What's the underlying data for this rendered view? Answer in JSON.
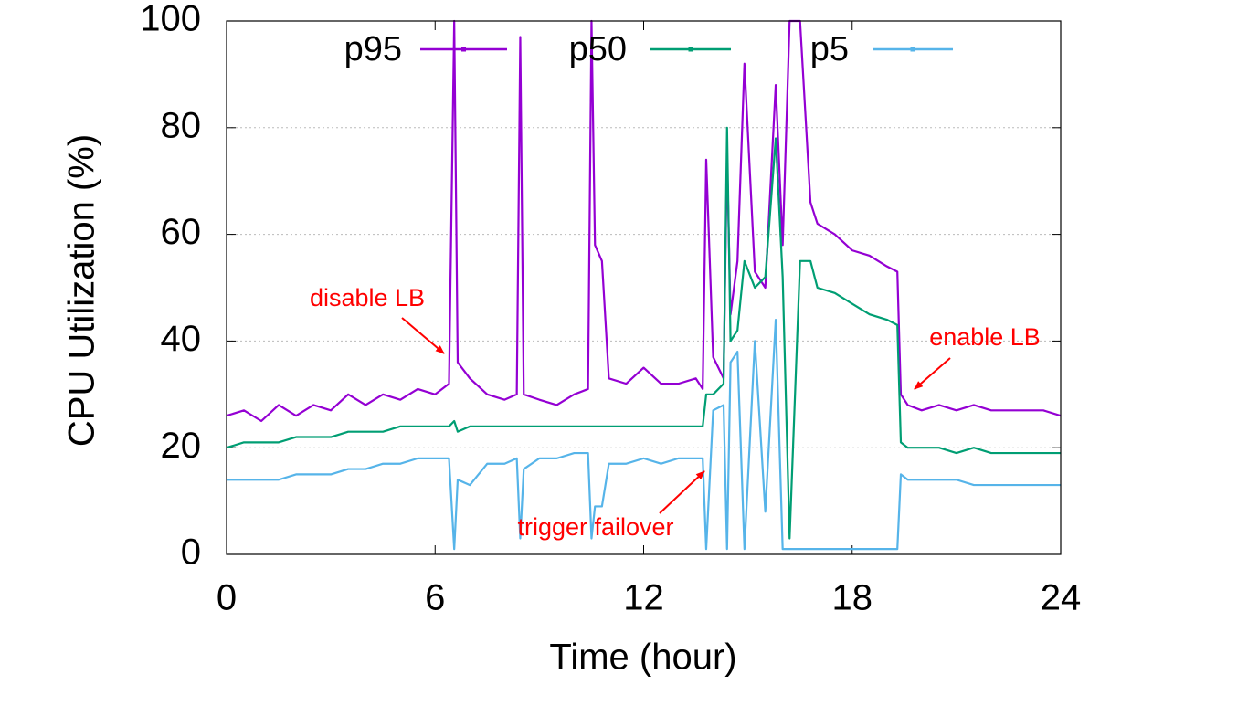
{
  "chart_data": {
    "type": "line",
    "x_label": "Time (hour)",
    "y_label": "CPU Utilization (%)",
    "xlim": [
      0,
      24
    ],
    "xticks": [
      0,
      6,
      12,
      18,
      24
    ],
    "ylim": [
      0,
      100
    ],
    "yticks": [
      0,
      20,
      40,
      60,
      80,
      100
    ],
    "grid": "y",
    "legend": "top",
    "annotations": [
      "disable LB",
      "trigger failover",
      "enable LB"
    ],
    "x": [
      0,
      0.5,
      1,
      1.5,
      2,
      2.5,
      3,
      3.5,
      4,
      4.5,
      5,
      5.5,
      6,
      6.4,
      6.55,
      6.65,
      7,
      7.5,
      8,
      8.35,
      8.45,
      8.55,
      9,
      9.5,
      10,
      10.4,
      10.5,
      10.6,
      10.8,
      11,
      11.5,
      12,
      12.5,
      13,
      13.5,
      13.7,
      13.8,
      14,
      14.3,
      14.4,
      14.5,
      14.7,
      14.9,
      15.2,
      15.5,
      15.8,
      16,
      16.2,
      16.5,
      16.8,
      17,
      17.5,
      18,
      18.5,
      19,
      19.3,
      19.4,
      19.6,
      20,
      20.5,
      21,
      21.5,
      22,
      22.5,
      23,
      23.5,
      24
    ],
    "series": [
      {
        "name": "p95",
        "color": "#9400d3",
        "values": [
          26,
          27,
          25,
          28,
          26,
          28,
          27,
          30,
          28,
          30,
          29,
          31,
          30,
          32,
          100,
          36,
          33,
          30,
          29,
          30,
          97,
          30,
          29,
          28,
          30,
          31,
          100,
          58,
          55,
          33,
          32,
          35,
          32,
          32,
          33,
          31,
          74,
          37,
          33,
          75,
          45,
          55,
          92,
          53,
          50,
          88,
          58,
          100,
          100,
          66,
          62,
          60,
          57,
          56,
          54,
          53,
          30,
          28,
          27,
          28,
          27,
          28,
          27,
          27,
          27,
          27,
          26
        ]
      },
      {
        "name": "p50",
        "color": "#009e73",
        "values": [
          20,
          21,
          21,
          21,
          22,
          22,
          22,
          23,
          23,
          23,
          24,
          24,
          24,
          24,
          25,
          23,
          24,
          24,
          24,
          24,
          24,
          24,
          24,
          24,
          24,
          24,
          24,
          24,
          24,
          24,
          24,
          24,
          24,
          24,
          24,
          24,
          30,
          30,
          32,
          80,
          40,
          42,
          55,
          50,
          52,
          78,
          52,
          3,
          55,
          55,
          50,
          49,
          47,
          45,
          44,
          43,
          21,
          20,
          20,
          20,
          19,
          20,
          19,
          19,
          19,
          19,
          19
        ]
      },
      {
        "name": "p5",
        "color": "#56b4e9",
        "values": [
          14,
          14,
          14,
          14,
          15,
          15,
          15,
          16,
          16,
          17,
          17,
          18,
          18,
          18,
          1,
          14,
          13,
          17,
          17,
          18,
          3,
          16,
          18,
          18,
          19,
          19,
          3,
          9,
          9,
          17,
          17,
          18,
          17,
          18,
          18,
          18,
          1,
          27,
          28,
          1,
          36,
          38,
          1,
          40,
          8,
          44,
          1,
          1,
          1,
          1,
          1,
          1,
          1,
          1,
          1,
          1,
          15,
          14,
          14,
          14,
          14,
          13,
          13,
          13,
          13,
          13,
          13
        ]
      }
    ]
  }
}
